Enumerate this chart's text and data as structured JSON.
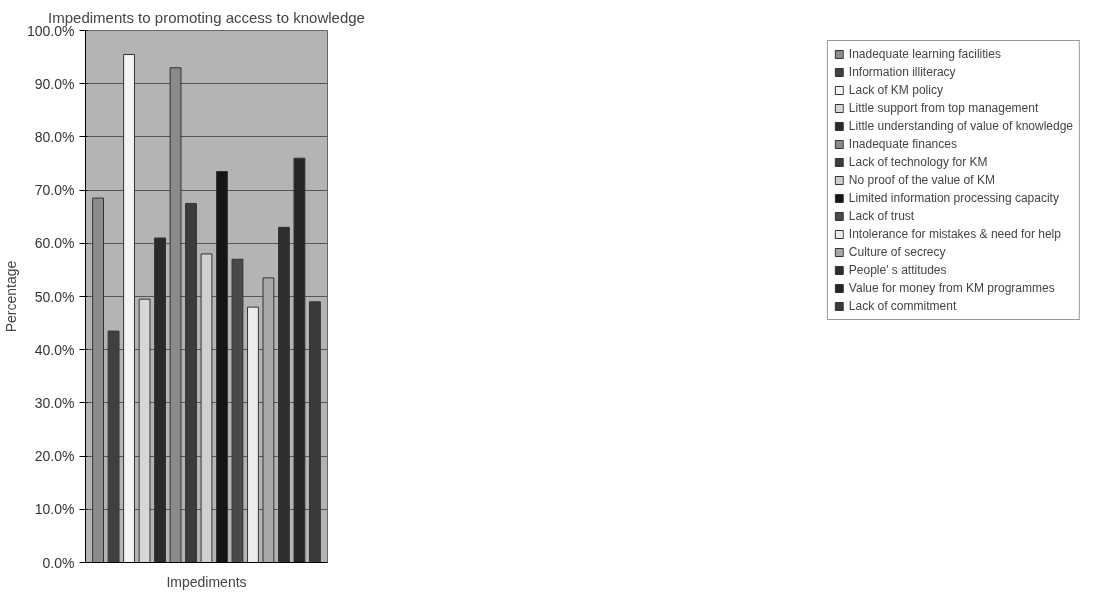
{
  "chart_data": {
    "type": "bar",
    "title": "Impediments to promoting access to knowledge",
    "xlabel": "Impediments",
    "ylabel": "Percentage",
    "categories": [
      null
    ],
    "series": [
      {
        "name": "Inadequate learning facilities",
        "color": "#8c8c8c",
        "values": [
          68.5
        ]
      },
      {
        "name": "Information illiteracy",
        "color": "#404040",
        "values": [
          43.5
        ]
      },
      {
        "name": "Lack of KM policy",
        "color": "#f4f4f4",
        "values": [
          95.5
        ]
      },
      {
        "name": "Little support from top management",
        "color": "#d6d6d6",
        "values": [
          49.5
        ]
      },
      {
        "name": "Little understanding of value of knowledge",
        "color": "#2a2a2a",
        "values": [
          61
        ]
      },
      {
        "name": "Inadequate finances",
        "color": "#8a8a8a",
        "values": [
          93
        ]
      },
      {
        "name": "Lack of technology for KM",
        "color": "#3c3c3c",
        "values": [
          67.5
        ]
      },
      {
        "name": "No proof of the value of KM",
        "color": "#cfcfcf",
        "values": [
          58
        ]
      },
      {
        "name": "Limited information processing capacity",
        "color": "#151515",
        "values": [
          73.5
        ]
      },
      {
        "name": "Lack of trust",
        "color": "#4a4a4a",
        "values": [
          57
        ]
      },
      {
        "name": "Intolerance for mistakes & need for help",
        "color": "#ececec",
        "values": [
          48
        ]
      },
      {
        "name": "Culture of secrecy",
        "color": "#a8a8a8",
        "values": [
          53.5
        ]
      },
      {
        "name": "People' s attitudes",
        "color": "#2e2e2e",
        "values": [
          63
        ]
      },
      {
        "name": "Value for money from KM programmes",
        "color": "#262626",
        "values": [
          76
        ]
      },
      {
        "name": "Lack of commitment",
        "color": "#3a3a3a",
        "values": [
          49
        ]
      }
    ],
    "ylim": [
      0,
      100
    ],
    "yticks": [
      {
        "value": 0,
        "label": "0.0%"
      },
      {
        "value": 10,
        "label": "10.0%"
      },
      {
        "value": 20,
        "label": "20.0%"
      },
      {
        "value": 30,
        "label": "30.0%"
      },
      {
        "value": 40,
        "label": "40.0%"
      },
      {
        "value": 50,
        "label": "50.0%"
      },
      {
        "value": 60,
        "label": "60.0%"
      },
      {
        "value": 70,
        "label": "70.0%"
      },
      {
        "value": 80,
        "label": "80.0%"
      },
      {
        "value": 90,
        "label": "90.0%"
      },
      {
        "value": 100,
        "label": "100.0%"
      }
    ],
    "grid": "y",
    "legend": "right",
    "tick_labels": "y"
  }
}
